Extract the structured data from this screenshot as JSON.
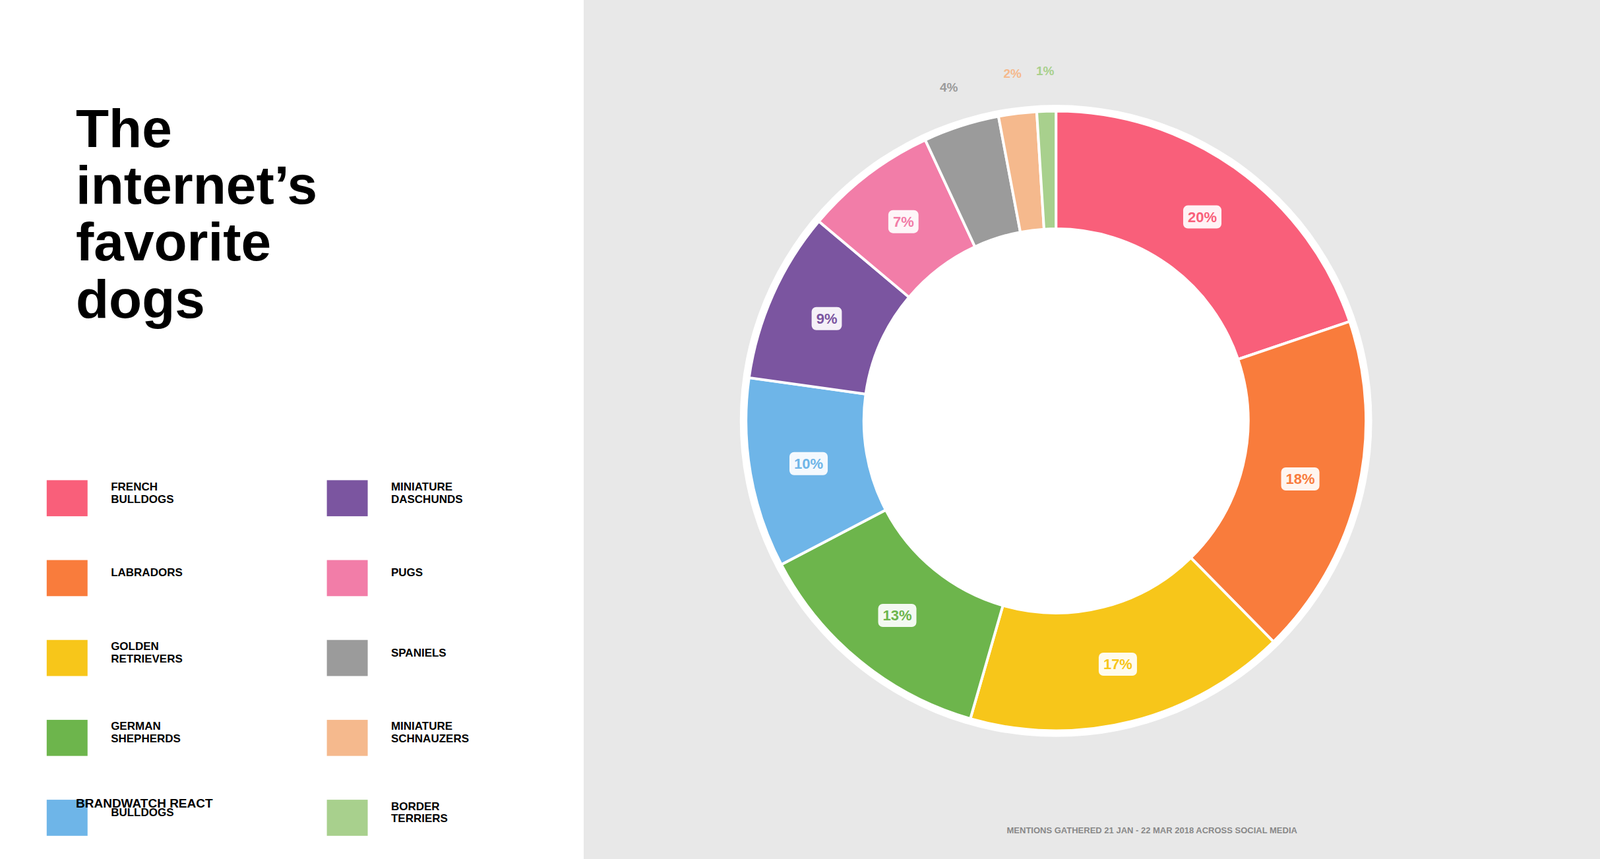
{
  "chart_data": {
    "type": "donut",
    "title": "The\ninternet’s\nfavorite\ndogs",
    "subtitle": "MENTIONS GATHERED 21 JAN - 22 MAR 2018 ACROSS SOCIAL MEDIA",
    "annotations": [
      "BRANDWATCH REACT"
    ],
    "categories": [
      "FRENCH\nBULLDOGS",
      "LABRADORS",
      "GOLDEN\nRETRIEVERS",
      "GERMAN\nSHEPHERDS",
      "BULLDOGS",
      "MINIATURE\nDASCHUNDS",
      "PUGS",
      "SPANIELS",
      "MINIATURE\nSCHNAUZERS",
      "BORDER\nTERRIERS"
    ],
    "values": [
      20,
      18,
      17,
      13,
      10,
      9,
      7,
      4,
      2,
      1
    ],
    "value_labels": [
      "20%",
      "18%",
      "17%",
      "13%",
      "10%",
      "9%",
      "7%",
      "4%",
      "2%",
      "1%"
    ],
    "colors": [
      "#F95F7A",
      "#F97C3C",
      "#F7C61A",
      "#6DB54C",
      "#6EB5E8",
      "#7B55A0",
      "#F27DA8",
      "#9B9B9B",
      "#F5B98D",
      "#A8D08D"
    ],
    "data_labels": true,
    "legend": "left"
  }
}
